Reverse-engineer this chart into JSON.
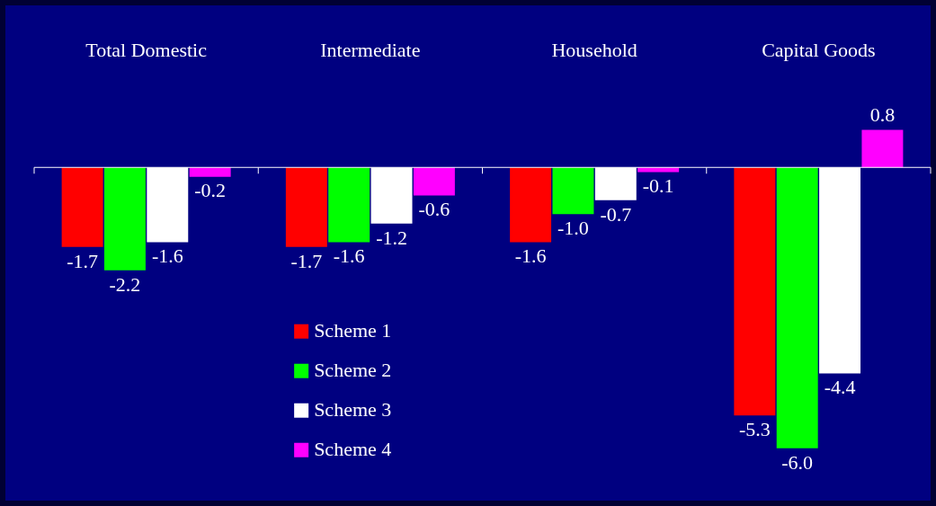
{
  "chart_data": {
    "type": "bar",
    "categories": [
      "Total Domestic",
      "Intermediate",
      "Household",
      "Capital Goods"
    ],
    "series": [
      {
        "name": "Scheme 1",
        "color": "#ff0000",
        "values": [
          -1.7,
          -1.7,
          -1.6,
          -5.3
        ],
        "value_labels": [
          "-1.7",
          "-1.7",
          "-1.6",
          "-5.3"
        ]
      },
      {
        "name": "Scheme 2",
        "color": "#00ff00",
        "values": [
          -2.2,
          -1.6,
          -1.0,
          -6.0
        ],
        "value_labels": [
          "-2.2",
          "-1.6",
          "-1.0",
          "-6.0"
        ]
      },
      {
        "name": "Scheme 3",
        "color": "#ffffff",
        "values": [
          -1.6,
          -1.2,
          -0.7,
          -4.4
        ],
        "value_labels": [
          "-1.6",
          "-1.2",
          "-0.7",
          "-4.4"
        ]
      },
      {
        "name": "Scheme 4",
        "color": "#ff00ff",
        "values": [
          -0.2,
          -0.6,
          -0.1,
          0.8
        ],
        "value_labels": [
          "-0.2",
          "-0.6",
          "-0.1",
          "0.8"
        ]
      }
    ],
    "legend": "bottom left",
    "grid": false,
    "tick_labels": "x"
  }
}
